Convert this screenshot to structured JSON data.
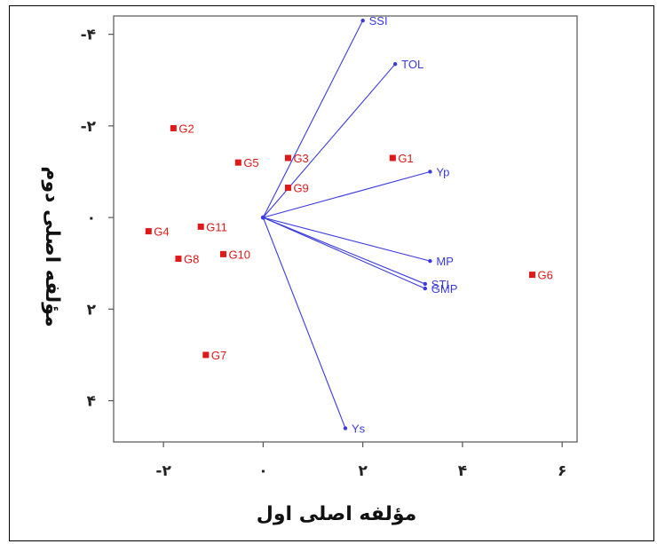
{
  "chart_data": {
    "type": "scatter",
    "title": "",
    "xlabel": "مؤلفه اصلی اول",
    "ylabel": "مؤلفه اصلی دوم",
    "xlim": [
      -3,
      6.3
    ],
    "ylim": [
      -4.4,
      4.9
    ],
    "y_inverted": true,
    "x_ticks": [
      -2,
      0,
      2,
      4,
      6
    ],
    "x_tick_labels": [
      "-۲",
      "۰",
      "۲",
      "۴",
      "۶"
    ],
    "y_ticks": [
      -4,
      -2,
      0,
      2,
      4
    ],
    "y_tick_labels": [
      "-۴",
      "-۲",
      "۰",
      "۲",
      "۴"
    ],
    "grid": false,
    "legend": "none",
    "genotype_color": "#e01818",
    "vector_color": "#3a3ae0",
    "genotypes": [
      {
        "label": "G1",
        "x": 2.6,
        "y": -1.3
      },
      {
        "label": "G2",
        "x": -1.8,
        "y": -1.95
      },
      {
        "label": "G3",
        "x": 0.5,
        "y": -1.3
      },
      {
        "label": "G4",
        "x": -2.3,
        "y": 0.3
      },
      {
        "label": "G5",
        "x": -0.5,
        "y": -1.2
      },
      {
        "label": "G6",
        "x": 5.4,
        "y": 1.25
      },
      {
        "label": "G7",
        "x": -1.15,
        "y": 3.0
      },
      {
        "label": "G8",
        "x": -1.7,
        "y": 0.9
      },
      {
        "label": "G9",
        "x": 0.5,
        "y": -0.65
      },
      {
        "label": "G10",
        "x": -0.8,
        "y": 0.8
      },
      {
        "label": "G11",
        "x": -1.25,
        "y": 0.2
      }
    ],
    "vectors": [
      {
        "label": "SSI",
        "x": 2.0,
        "y": -4.3
      },
      {
        "label": "TOL",
        "x": 2.65,
        "y": -3.35
      },
      {
        "label": "Yp",
        "x": 3.35,
        "y": -1.0
      },
      {
        "label": "MP",
        "x": 3.35,
        "y": 0.95
      },
      {
        "label": "STI",
        "x": 3.25,
        "y": 1.45
      },
      {
        "label": "GMP",
        "x": 3.25,
        "y": 1.55
      },
      {
        "label": "Ys",
        "x": 1.65,
        "y": 4.6
      }
    ]
  }
}
